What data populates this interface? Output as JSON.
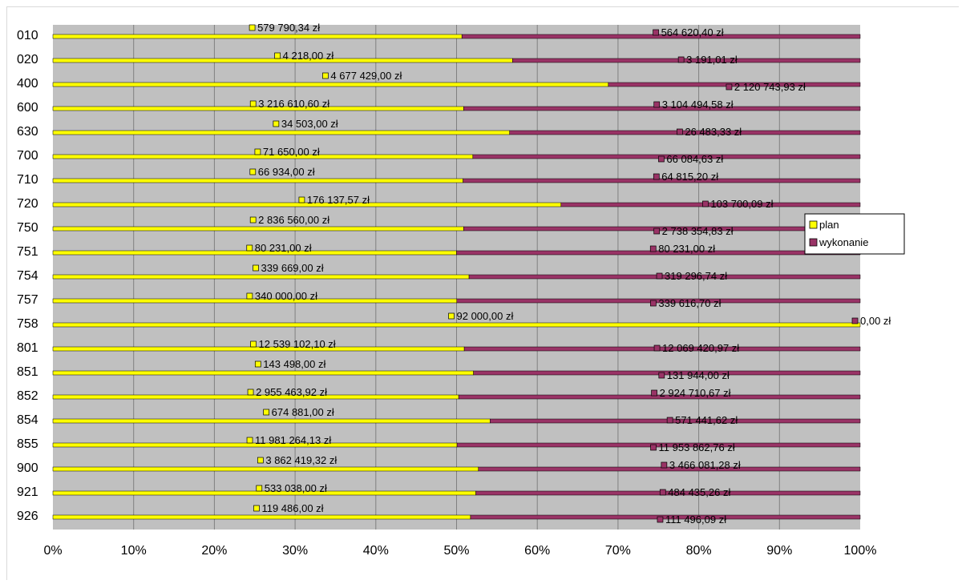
{
  "chart_data": {
    "type": "bar",
    "orientation": "horizontal",
    "stacked": "percent",
    "categories": [
      "010",
      "020",
      "400",
      "600",
      "630",
      "700",
      "710",
      "720",
      "750",
      "751",
      "754",
      "757",
      "758",
      "801",
      "851",
      "852",
      "854",
      "855",
      "900",
      "921",
      "926"
    ],
    "series": [
      {
        "name": "plan",
        "color": "#ffff00",
        "values": [
          579790.34,
          4218.0,
          4677429.0,
          3216610.6,
          34503.0,
          71650.0,
          66934.0,
          176137.57,
          2836560.0,
          80231.0,
          339669.0,
          340000.0,
          92000.0,
          12539102.1,
          143498.0,
          2955463.92,
          674881.0,
          11981264.13,
          3862419.32,
          533038.0,
          119486.0
        ],
        "labels": [
          "579 790,34 zł",
          "4 218,00 zł",
          "4 677 429,00 zł",
          "3 216 610,60 zł",
          "34 503,00 zł",
          "71 650,00 zł",
          "66 934,00 zł",
          "176 137,57 zł",
          "2 836 560,00 zł",
          "80 231,00 zł",
          "339 669,00 zł",
          "340 000,00 zł",
          "92 000,00 zł",
          "12 539 102,10 zł",
          "143 498,00 zł",
          "2 955 463,92 zł",
          "674 881,00 zł",
          "11 981 264,13 zł",
          "3 862 419,32 zł",
          "533 038,00 zł",
          "119 486,00 zł"
        ]
      },
      {
        "name": "wykonanie",
        "color": "#993366",
        "values": [
          564620.4,
          3191.01,
          2120743.93,
          3104494.58,
          26483.33,
          66084.63,
          64815.2,
          103700.09,
          2738354.83,
          80231.0,
          319296.74,
          339616.7,
          0.0,
          12069420.97,
          131944.0,
          2924710.67,
          571441.62,
          11953862.76,
          3466081.28,
          484435.26,
          111496.09
        ],
        "labels": [
          "564 620,40 zł",
          "3 191,01 zł",
          "2 120 743,93 zł",
          "3 104 494,58 zł",
          "26 483,33 zł",
          "66 084,63 zł",
          "64 815,20 zł",
          "103 700,09 zł",
          "2 738 354,83 zł",
          "80 231,00 zł",
          "319 296,74 zł",
          "339 616,70 zł",
          "0,00 zł",
          "12 069 420,97 zł",
          "131 944,00 zł",
          "2 924 710,67 zł",
          "571 441,62 zł",
          "11 953 862,76 zł",
          "3 466 081,28 zł",
          "484 435,26 zł",
          "111 496,09 zł"
        ]
      }
    ],
    "x_ticks": [
      "0%",
      "10%",
      "20%",
      "30%",
      "40%",
      "50%",
      "60%",
      "70%",
      "80%",
      "90%",
      "100%"
    ],
    "xlim": [
      0,
      100
    ],
    "grid": true,
    "legend": "right",
    "plot_background": "#c0c0c0"
  }
}
